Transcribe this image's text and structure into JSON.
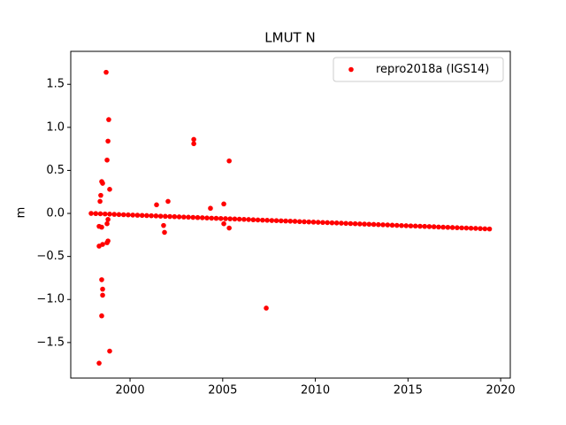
{
  "chart_data": {
    "type": "scatter",
    "title": "LMUT N",
    "ylabel": "m",
    "xlim": [
      1996.8,
      2020.52
    ],
    "ylim": [
      -1.913,
      1.883
    ],
    "xticks": [
      2000,
      2005,
      2010,
      2015,
      2020
    ],
    "yticks": [
      {
        "value": -1.5,
        "label": "−1.5"
      },
      {
        "value": -1.0,
        "label": "−1.0"
      },
      {
        "value": -0.5,
        "label": "−0.5"
      },
      {
        "value": 0.0,
        "label": "0.0"
      },
      0.5,
      {
        "value": 1.0,
        "label": "1.0"
      },
      1.5
    ],
    "grid": false,
    "legend": "upper right",
    "series": [
      {
        "name": "repro2018a (IGS14)",
        "color": "#ff0000",
        "x": [
          1997.9,
          1998.15,
          1998.4,
          1998.65,
          1998.9,
          1999.15,
          1999.4,
          1999.65,
          1999.9,
          2000.15,
          2000.4,
          2000.65,
          2000.9,
          2001.15,
          2001.4,
          2001.65,
          2001.9,
          2002.15,
          2002.4,
          2002.65,
          2002.9,
          2003.15,
          2003.4,
          2003.65,
          2003.9,
          2004.15,
          2004.4,
          2004.65,
          2004.9,
          2005.15,
          2005.4,
          2005.65,
          2005.9,
          2006.15,
          2006.4,
          2006.65,
          2006.9,
          2007.15,
          2007.4,
          2007.65,
          2007.9,
          2008.15,
          2008.4,
          2008.65,
          2008.9,
          2009.15,
          2009.4,
          2009.65,
          2009.9,
          2010.15,
          2010.4,
          2010.65,
          2010.9,
          2011.15,
          2011.4,
          2011.65,
          2011.9,
          2012.15,
          2012.4,
          2012.65,
          2012.9,
          2013.15,
          2013.4,
          2013.65,
          2013.9,
          2014.15,
          2014.4,
          2014.65,
          2014.9,
          2015.15,
          2015.4,
          2015.65,
          2015.9,
          2016.15,
          2016.4,
          2016.65,
          2016.9,
          2017.15,
          2017.4,
          2017.65,
          2017.9,
          2018.15,
          2018.4,
          2018.65,
          2018.9,
          2019.15,
          2019.4,
          1998.71,
          1998.85,
          1998.81,
          1998.76,
          1998.9,
          1998.47,
          1998.52,
          1998.42,
          1998.38,
          1998.33,
          1998.52,
          1998.76,
          1998.81,
          1998.47,
          1998.52,
          1998.52,
          1998.47,
          1998.9,
          1998.33,
          1998.33,
          1998.47,
          1998.76,
          1998.81,
          2003.44,
          2003.44,
          2005.35,
          2001.43,
          2002.05,
          2004.34,
          2005.06,
          2001.81,
          2001.86,
          2005.06,
          2005.35,
          2007.35
        ],
        "values": [
          0,
          -0.002,
          -0.004,
          -0.006,
          -0.008,
          -0.011,
          -0.013,
          -0.015,
          -0.017,
          -0.019,
          -0.021,
          -0.023,
          -0.025,
          -0.027,
          -0.029,
          -0.032,
          -0.034,
          -0.036,
          -0.038,
          -0.04,
          -0.042,
          -0.044,
          -0.046,
          -0.048,
          -0.05,
          -0.053,
          -0.055,
          -0.057,
          -0.059,
          -0.061,
          -0.063,
          -0.065,
          -0.067,
          -0.069,
          -0.071,
          -0.074,
          -0.076,
          -0.078,
          -0.08,
          -0.082,
          -0.084,
          -0.086,
          -0.088,
          -0.09,
          -0.092,
          -0.095,
          -0.097,
          -0.099,
          -0.101,
          -0.103,
          -0.105,
          -0.107,
          -0.109,
          -0.111,
          -0.113,
          -0.116,
          -0.118,
          -0.12,
          -0.122,
          -0.124,
          -0.126,
          -0.128,
          -0.13,
          -0.132,
          -0.134,
          -0.137,
          -0.139,
          -0.141,
          -0.143,
          -0.145,
          -0.147,
          -0.149,
          -0.151,
          -0.153,
          -0.155,
          -0.158,
          -0.16,
          -0.162,
          -0.164,
          -0.166,
          -0.168,
          -0.17,
          -0.172,
          -0.174,
          -0.176,
          -0.179,
          -0.181,
          1.64,
          1.09,
          0.84,
          0.62,
          0.28,
          0.37,
          0.35,
          0.21,
          0.14,
          -0.38,
          -0.36,
          -0.34,
          -0.32,
          -0.77,
          -0.88,
          -0.95,
          -1.19,
          -1.6,
          -1.74,
          -0.15,
          -0.16,
          -0.12,
          -0.07,
          0.86,
          0.81,
          0.61,
          0.1,
          0.14,
          0.06,
          0.11,
          -0.14,
          -0.22,
          -0.12,
          -0.17,
          -1.1
        ]
      }
    ]
  }
}
